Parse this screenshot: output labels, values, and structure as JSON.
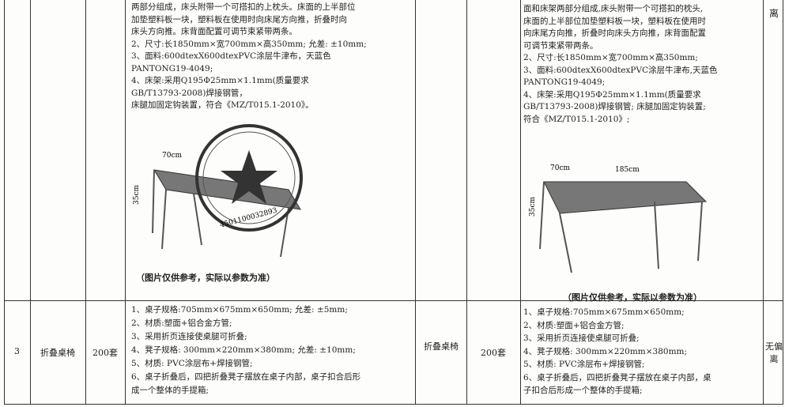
{
  "table": {
    "rows": [
      {
        "spec": [
          "两部分组成，床头附带一个可搭扣的上枕头。床面的上半部位",
          "加垫塑料板一块，塑料板在使用时向床尾方向推，折叠时向",
          "床头方向推。床背面配置可调节束紧带两条。",
          "2、尺寸:长1850mm×宽700mm×高350mm; 允差: ±10mm;",
          "3、面料:600dtexX600dtexPVC涂层牛津布，天蓝色",
          "PANTONG19-4049;",
          "4、床架:采用Q195Φ25mm×1.1mm(质量要求",
          "GB/T13793-2008)焊接钢管，",
          "床腿加固定钩装置，符合《MZ/T015.1-2010》。"
        ],
        "image_labels": [
          "70cm",
          "35cm"
        ],
        "caption": "（图片仅供参考，实际以参数为准）",
        "stamp_number": "4501100032893",
        "resp_spec": [
          "面和床架两部分组成,床头附带一个可搭扣的枕头,",
          "床面的上半部位加垫塑料板一块，塑料板在使用时",
          "向床尾方向推，折叠时向床头方向推，床背面配置",
          "可调节束紧带两条。",
          "2、尺寸:长1850mm×宽700mm×高350mm;",
          "3、面料:600dtexX600dtexPVC涂层牛津布,天蓝色",
          "PANTONG19-4049;",
          "4、床架:采用Q195Φ25mm×1.1mm(质量要求",
          "GB/T13793-2008)焊接钢管; 床腿加固定钩装置;",
          "符合《MZ/T015.1-2010》;"
        ],
        "resp_image_labels": [
          "70cm",
          "185cm",
          "35cm"
        ],
        "resp_caption": "（图片仅供参考，实际以参数为准）",
        "deviation": "离"
      },
      {
        "no": "3",
        "name": "折叠桌椅",
        "qty": "200套",
        "spec": [
          "1、桌子规格:705mm×675mm×650mm; 允差: ±5mm;",
          "2、材质:塑面+铝合金方管;",
          "3、采用折页连接使桌腿可折叠;",
          "4、凳子规格: 300mm×220mm×380mm; 允差: ±10mm;",
          "5、材质: PVC涂层布+焊接钢管;",
          "6、桌子折叠后，四把折叠凳子摆放在桌子内部，桌子扣合后形",
          "成一个整体的手提箱;"
        ],
        "resp_name": "折叠桌椅",
        "resp_qty": "200套",
        "resp_spec": [
          "1、桌子规格:705mm×675mm×650mm;",
          "2、材质:塑面+铝合金方管;",
          "3、采用折页连接使桌腿可折叠;",
          "4、凳子规格: 300mm×220mm×380mm;",
          "5、材质: PVC涂层布+焊接钢管;",
          "6、桌子折叠后，四把折叠凳子摆放在桌子内部，桌",
          "子扣合后形成一个整体的手提箱;"
        ],
        "deviation": "无偏离"
      }
    ]
  }
}
